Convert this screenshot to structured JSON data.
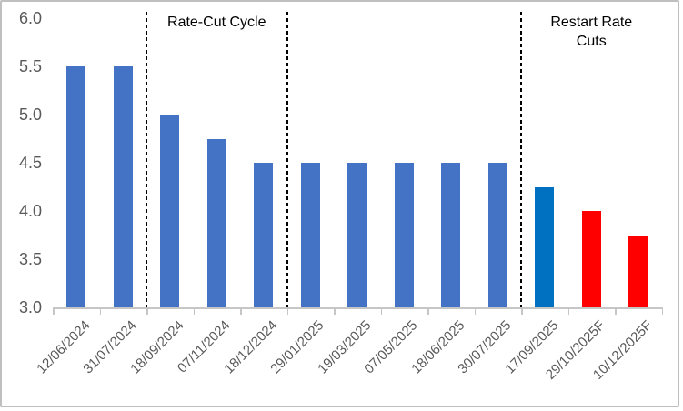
{
  "chart_data": {
    "type": "bar",
    "title": "",
    "xlabel": "",
    "ylabel": "",
    "categories": [
      "12/06/2024",
      "31/07/2024",
      "18/09/2024",
      "07/11/2024",
      "18/12/2024",
      "29/01/2025",
      "19/03/2025",
      "07/05/2025",
      "18/06/2025",
      "30/07/2025",
      "17/09/2025",
      "29/10/2025F",
      "10/12/2025F"
    ],
    "values": [
      5.5,
      5.5,
      5.0,
      4.75,
      4.5,
      4.5,
      4.5,
      4.5,
      4.5,
      4.5,
      4.25,
      4.0,
      3.75
    ],
    "bar_colors": [
      "#4472C4",
      "#4472C4",
      "#4472C4",
      "#4472C4",
      "#4472C4",
      "#4472C4",
      "#4472C4",
      "#4472C4",
      "#4472C4",
      "#4472C4",
      "#0070C0",
      "#FF0000",
      "#FF0000"
    ],
    "ylim": [
      3.0,
      6.0
    ],
    "ytick_values": [
      6.0,
      5.5,
      5.0,
      4.5,
      4.0,
      3.5,
      3.0
    ],
    "ytick_labels": [
      "6.0",
      "5.5",
      "5.0",
      "4.5",
      "4.0",
      "3.5",
      "3.0"
    ],
    "grid": "off",
    "legend": "none",
    "dividers": {
      "style": "dashed",
      "color": "#000000",
      "boundary_indices": [
        2,
        5,
        10
      ]
    },
    "annotations": [
      {
        "name": "rate-cut-cycle",
        "lines": [
          "Rate-Cut Cycle"
        ],
        "region": [
          2,
          5
        ]
      },
      {
        "name": "restart-rate-cuts",
        "lines": [
          "Restart Rate",
          "Cuts"
        ],
        "region": [
          10,
          13
        ]
      }
    ],
    "colors": {
      "bar_default": "#4472C4",
      "bar_latest": "#0070C0",
      "bar_forecast": "#FF0000",
      "axis_line": "#C6C6C6",
      "tick_label_text": "#595959",
      "annotation_text": "#000000",
      "frame_border": "#BFBFBF",
      "background": "#FFFFFF"
    }
  }
}
